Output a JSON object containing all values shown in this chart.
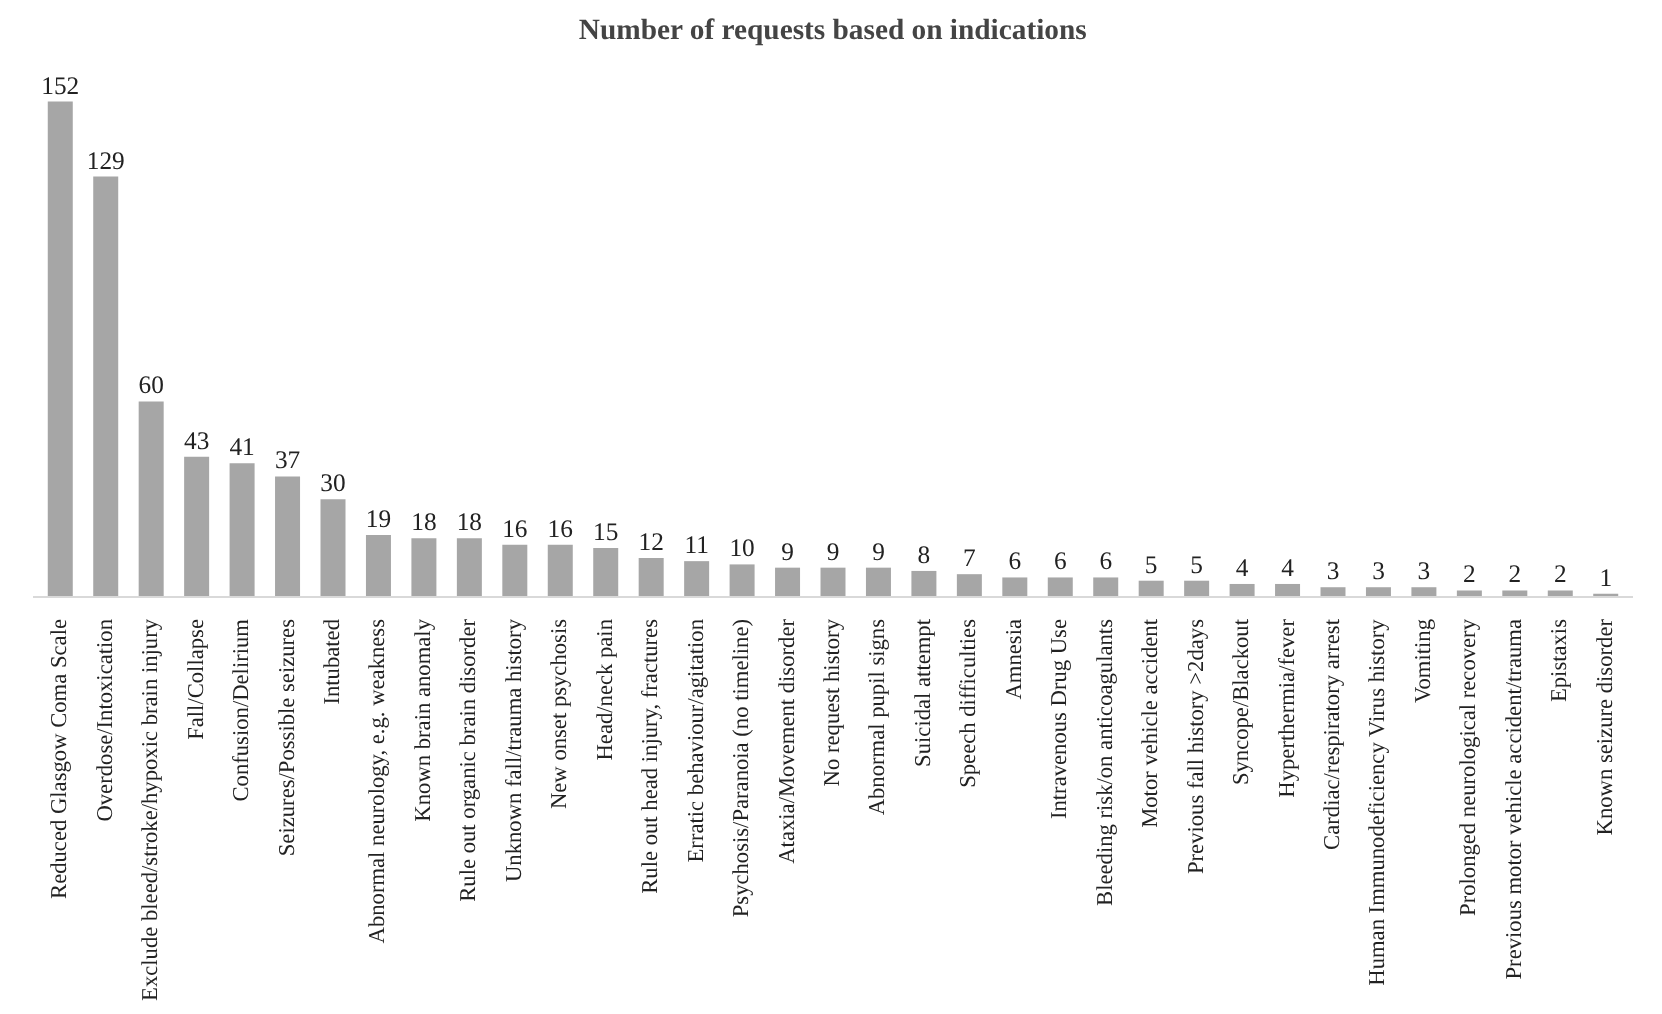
{
  "chart_data": {
    "type": "bar",
    "title": "Number of requests based on indications",
    "categories": [
      "Reduced Glasgow Coma Scale",
      "Overdose/Intoxication",
      "Exclude bleed/stroke/hypoxic brain injury",
      "Fall/Collapse",
      "Confusion/Delirium",
      "Seizures/Possible seizures",
      "Intubated",
      "Abnormal neurology, e.g. weakness",
      "Known brain anomaly",
      "Rule out organic brain disorder",
      "Unknown fall/trauma history",
      "New onset psychosis",
      "Head/neck pain",
      "Rule out head injury, fractures",
      "Erratic behaviour/agitation",
      "Psychosis/Paranoia (no timeline)",
      "Ataxia/Movement disorder",
      "No request history",
      "Abnormal pupil signs",
      "Suicidal attempt",
      "Speech difficulties",
      "Amnesia",
      "Intravenous Drug Use",
      "Bleeding risk/on anticoagulants",
      "Motor vehicle accident",
      "Previous fall history >2days",
      "Syncope/Blackout",
      "Hyperthermia/fever",
      "Cardiac/respiratory arrest",
      "Human Immunodeficiency Virus history",
      "Vomiting",
      "Prolonged neurological recovery",
      "Previous motor vehicle accident/trauma",
      "Epistaxis",
      "Known seizure disorder"
    ],
    "values": [
      152,
      129,
      60,
      43,
      41,
      37,
      30,
      19,
      18,
      18,
      16,
      16,
      15,
      12,
      11,
      10,
      9,
      9,
      9,
      8,
      7,
      6,
      6,
      6,
      5,
      5,
      4,
      4,
      3,
      3,
      3,
      2,
      2,
      2,
      1
    ],
    "color": "#a6a6a6",
    "data_labels": true,
    "grid": false,
    "tick_labels": "x"
  }
}
